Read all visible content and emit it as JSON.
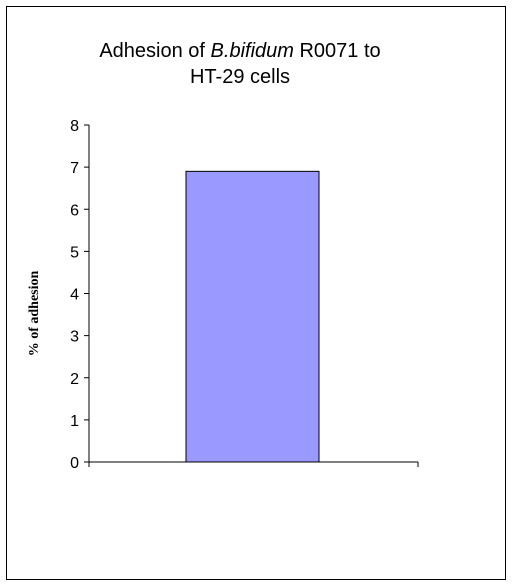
{
  "chart_data": {
    "type": "bar",
    "title_parts": [
      "Adhesion of ",
      "B.bifidum",
      " R0071 to",
      "HT-29 cells"
    ],
    "categories": [
      ""
    ],
    "values": [
      6.9
    ],
    "xlabel": "",
    "ylabel": "% of adhesion",
    "ylim": [
      0,
      8
    ],
    "yticks": [
      "0",
      "1",
      "2",
      "3",
      "4",
      "5",
      "6",
      "7",
      "8"
    ],
    "grid": false,
    "legend": "none",
    "bar_color": "#9999ff",
    "bar_edge_color": "#000000"
  }
}
